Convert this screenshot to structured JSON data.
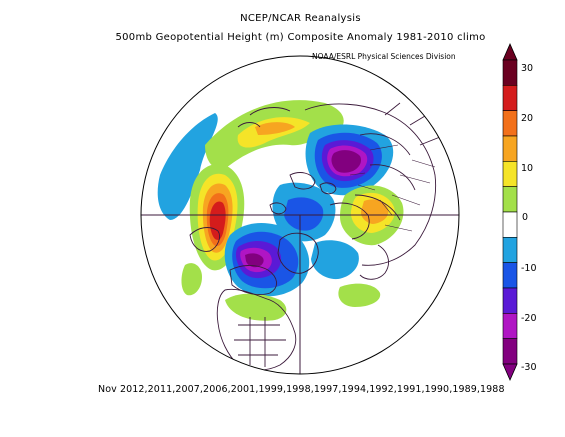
{
  "header": {
    "line1": "NCEP/NCAR Reanalysis",
    "line2": "500mb Geopotential Height (m) Composite Anomaly 1981-2010 climo",
    "credit": "NOAA/ESRL Physical Sciences Division"
  },
  "footer": {
    "composite_label": "Nov 2012,2011,2007,2006,2001,1999,1998,1997,1994,1992,1991,1990,1989,1988"
  },
  "colorbar": {
    "ticks": [
      "30",
      "20",
      "10",
      "0",
      "-10",
      "-20",
      "-30"
    ],
    "colors": [
      "#6a0020",
      "#d41c1c",
      "#f2701a",
      "#f7a521",
      "#f5e428",
      "#a3e04a",
      "#ffffff",
      "#22a3e0",
      "#1a55e6",
      "#5a1ad6",
      "#b015c4",
      "#82007f"
    ]
  },
  "map": {
    "projection": "polar-stereographic",
    "anomalies": [
      {
        "region": "northeast-pacific-alaska",
        "value": 30
      },
      {
        "region": "eastern-canada-greenland",
        "value": -25
      },
      {
        "region": "western-arctic-siberia",
        "value": -30
      },
      {
        "region": "north-atlantic-scandinavia",
        "value": 20
      },
      {
        "region": "europe",
        "value": 15
      },
      {
        "region": "north-pacific",
        "value": -10
      }
    ]
  }
}
